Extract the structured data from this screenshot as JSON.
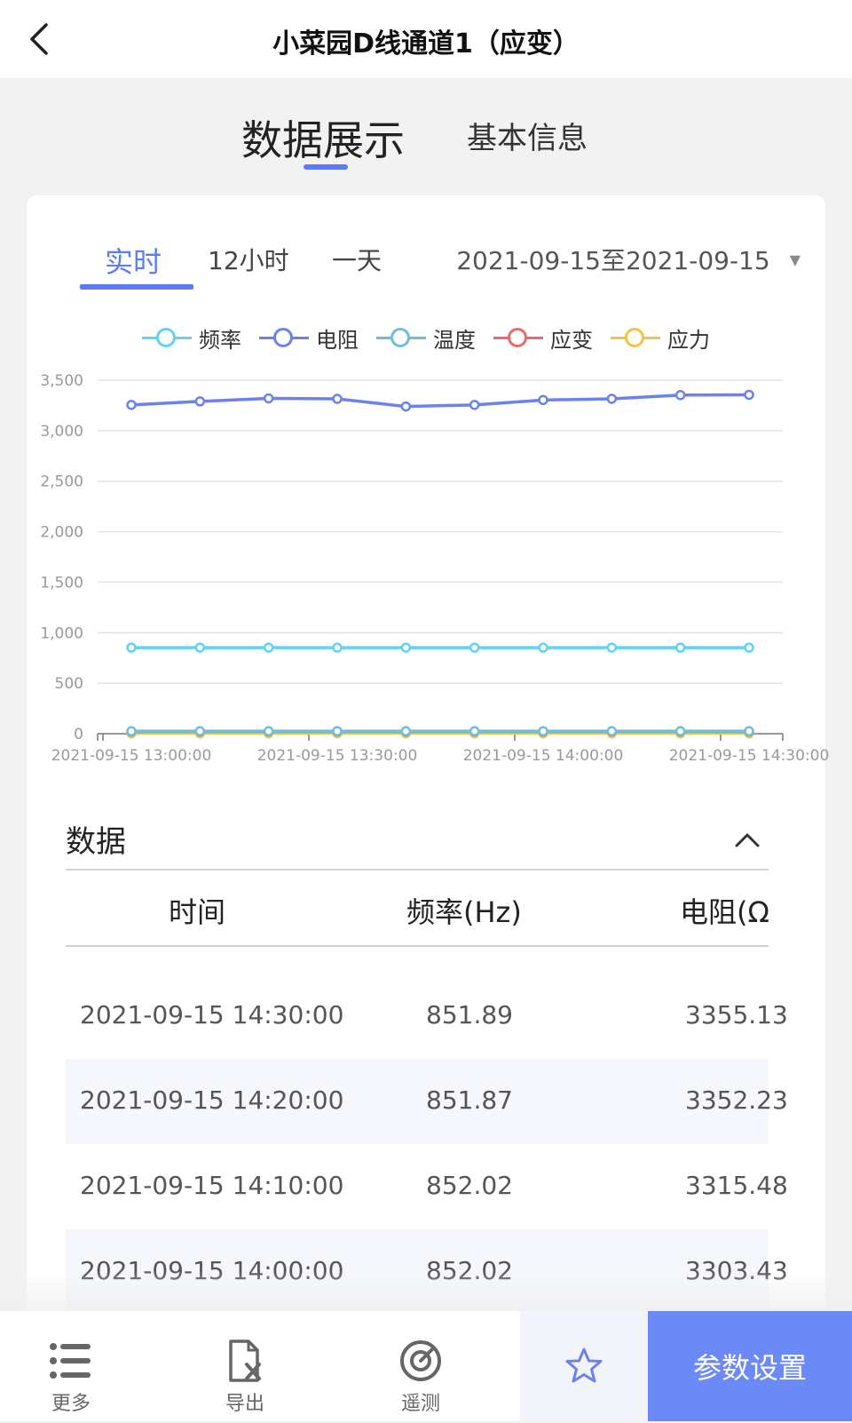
{
  "header": {
    "title": "小菜园D线通道1（应变）"
  },
  "main_tabs": [
    {
      "label": "数据展示"
    },
    {
      "label": "基本信息"
    }
  ],
  "range_tabs": [
    {
      "label": "实时"
    },
    {
      "label": "12小时"
    },
    {
      "label": "一天"
    }
  ],
  "date_range": "2021-09-15至2021-09-15",
  "legend": [
    {
      "label": "频率",
      "color": "#5fd3f3"
    },
    {
      "label": "电阻",
      "color": "#6b82ec"
    },
    {
      "label": "温度",
      "color": "#6cc0dc"
    },
    {
      "label": "应变",
      "color": "#e86a6a"
    },
    {
      "label": "应力",
      "color": "#f5c242"
    }
  ],
  "chart_data": {
    "type": "line",
    "x": [
      "13:00",
      "13:10",
      "13:20",
      "13:30",
      "13:40",
      "13:50",
      "14:00",
      "14:10",
      "14:20",
      "14:30"
    ],
    "x_tick_labels": [
      "2021-09-15 13:00:00",
      "2021-09-15 13:30:00",
      "2021-09-15 14:00:00",
      "2021-09-15 14:30:00"
    ],
    "y_tick_labels": [
      "0",
      "500",
      "1,000",
      "1,500",
      "2,000",
      "2,500",
      "3,000",
      "3,500"
    ],
    "ylim": [
      0,
      3500
    ],
    "grid": true,
    "legend_position": "top",
    "series": [
      {
        "name": "频率",
        "values": [
          852,
          852,
          852,
          852,
          852,
          852,
          852.02,
          852.02,
          851.87,
          851.89
        ]
      },
      {
        "name": "电阻",
        "values": [
          3255,
          3290,
          3320,
          3315,
          3240,
          3255,
          3303.43,
          3315.48,
          3352.23,
          3355.13
        ]
      },
      {
        "name": "温度",
        "values": [
          25,
          25,
          25,
          25,
          25,
          25,
          25,
          25,
          25,
          25
        ]
      },
      {
        "name": "应变",
        "values": [
          22,
          22,
          22,
          22,
          22,
          22,
          22,
          22,
          22,
          22
        ]
      },
      {
        "name": "应力",
        "values": [
          5,
          5,
          5,
          5,
          5,
          5,
          5,
          5,
          5,
          5
        ]
      }
    ]
  },
  "data_section": {
    "title": "数据",
    "columns": [
      "时间",
      "频率(Hz)",
      "电阻(Ω"
    ],
    "rows": [
      [
        "2021-09-15 14:30:00",
        "851.89",
        "3355.13"
      ],
      [
        "2021-09-15 14:20:00",
        "851.87",
        "3352.23"
      ],
      [
        "2021-09-15 14:10:00",
        "852.02",
        "3315.48"
      ],
      [
        "2021-09-15 14:00:00",
        "852.02",
        "3303.43"
      ]
    ]
  },
  "bottom_nav": {
    "items": [
      {
        "label": "更多",
        "icon": "list-icon"
      },
      {
        "label": "导出",
        "icon": "export-file-icon"
      },
      {
        "label": "遥测",
        "icon": "gauge-icon"
      }
    ],
    "favorite_icon": "star-icon",
    "params_label": "参数设置"
  }
}
